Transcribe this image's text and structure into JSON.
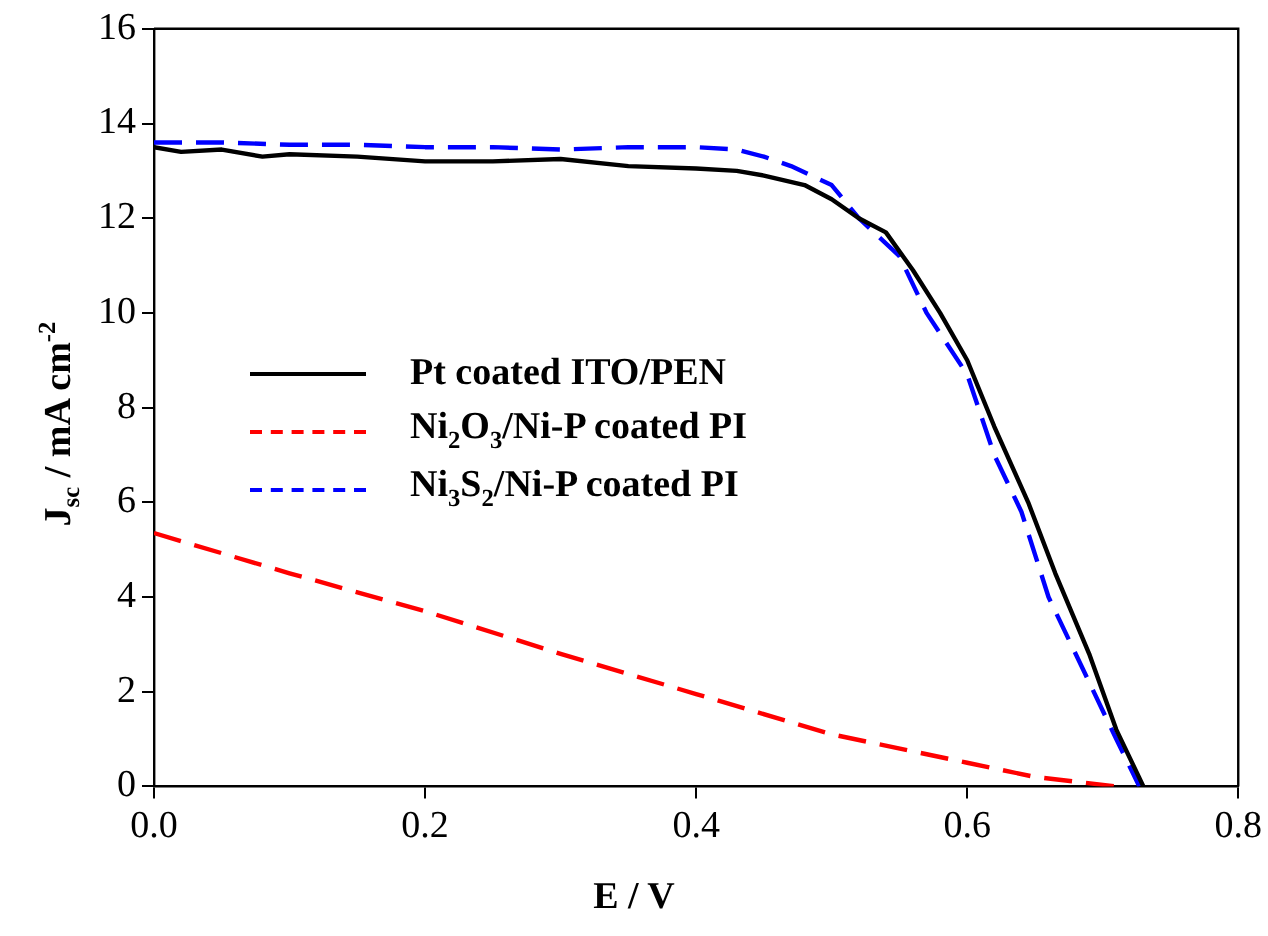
{
  "chart_data": {
    "type": "line",
    "xlabel": "E / V",
    "ylabel": "J$_{sc}$ / mA cm$^{-2}$",
    "xlim": [
      0,
      0.8
    ],
    "xticks": [
      {
        "value": 0,
        "label": "0.0"
      },
      0.2,
      0.4,
      0.6,
      0.8
    ],
    "ylim": [
      0,
      16
    ],
    "yticks": [
      0,
      2,
      4,
      6,
      8,
      10,
      12,
      14,
      16
    ],
    "grid": false,
    "legend": "left",
    "marker": "none",
    "series": [
      {
        "name": "Pt coated ITO/PEN",
        "color": "#000000",
        "line_style": "solid",
        "x": [
          0,
          0.02,
          0.05,
          0.08,
          0.1,
          0.15,
          0.2,
          0.25,
          0.3,
          0.35,
          0.4,
          0.43,
          0.45,
          0.48,
          0.5,
          0.52,
          0.54,
          0.56,
          0.58,
          0.6,
          0.62,
          0.645,
          0.665,
          0.69,
          0.71,
          0.73
        ],
        "values": [
          13.5,
          13.4,
          13.45,
          13.3,
          13.35,
          13.3,
          13.2,
          13.2,
          13.25,
          13.1,
          13.05,
          13.0,
          12.9,
          12.7,
          12.4,
          12.0,
          11.7,
          10.9,
          10.0,
          9.0,
          7.6,
          6.0,
          4.5,
          2.8,
          1.2,
          0
        ]
      },
      {
        "name": "Ni$_{2}$O$_{3}$/Ni-P coated PI",
        "color": "#ff0000",
        "line_style": "dashed",
        "x": [
          0,
          0.1,
          0.2,
          0.3,
          0.4,
          0.5,
          0.6,
          0.65,
          0.71
        ],
        "values": [
          5.35,
          4.5,
          3.7,
          2.8,
          1.95,
          1.1,
          0.5,
          0.2,
          0
        ]
      },
      {
        "name": "Ni$_{3}$S$_{2}$/Ni-P coated PI",
        "color": "#0000ff",
        "line_style": "dashed",
        "x": [
          0,
          0.05,
          0.1,
          0.15,
          0.2,
          0.25,
          0.3,
          0.35,
          0.4,
          0.43,
          0.45,
          0.47,
          0.5,
          0.52,
          0.55,
          0.57,
          0.6,
          0.62,
          0.64,
          0.66,
          0.685,
          0.71,
          0.727
        ],
        "values": [
          13.6,
          13.6,
          13.55,
          13.55,
          13.5,
          13.5,
          13.45,
          13.5,
          13.5,
          13.45,
          13.3,
          13.1,
          12.7,
          12.0,
          11.2,
          10.0,
          8.7,
          7.0,
          5.8,
          4.0,
          2.5,
          1.0,
          0
        ]
      }
    ]
  }
}
